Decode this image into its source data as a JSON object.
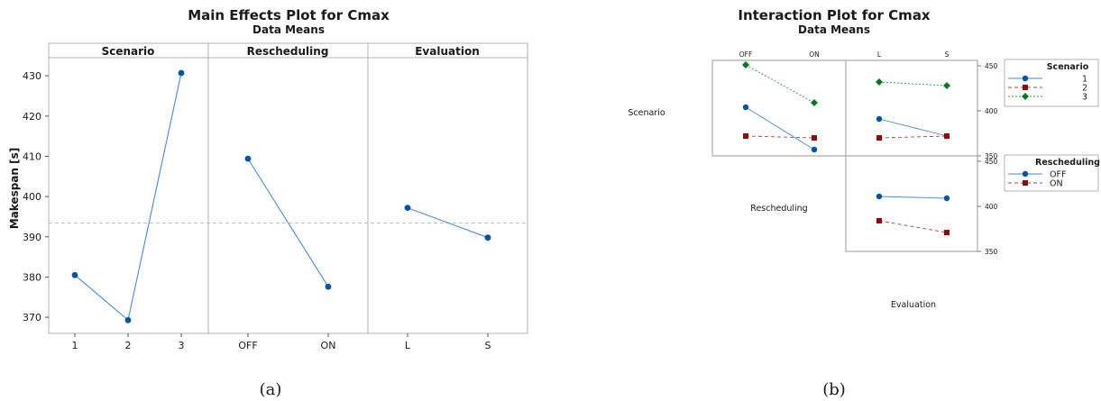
{
  "chart_data": [
    {
      "type": "line",
      "title": "Main Effects Plot for Cmax",
      "subtitle": "Data Means",
      "ylabel": "Makespan [s]",
      "ylim": [
        366,
        434.5
      ],
      "yticks": [
        370,
        380,
        390,
        400,
        410,
        420,
        430
      ],
      "reference_line": 393.4,
      "panels": [
        {
          "name": "Scenario",
          "categories": [
            "1",
            "2",
            "3"
          ],
          "values": [
            380.5,
            369.3,
            430.7
          ]
        },
        {
          "name": "Rescheduling",
          "categories": [
            "OFF",
            "ON"
          ],
          "values": [
            409.4,
            377.6
          ]
        },
        {
          "name": "Evaluation",
          "categories": [
            "L",
            "S"
          ],
          "values": [
            397.2,
            389.8
          ]
        }
      ],
      "caption": "(a)"
    },
    {
      "type": "line",
      "title": "Interaction Plot for Cmax",
      "subtitle": "Data Means",
      "row_labels": [
        "Scenario",
        "Rescheduling"
      ],
      "column_label": "Evaluation",
      "top_categories": [
        [
          "OFF",
          "ON"
        ],
        [
          "L",
          "S"
        ]
      ],
      "yticks": [
        350,
        400,
        450
      ],
      "cells": [
        {
          "row_factor": "Scenario",
          "col_factor": "Rescheduling",
          "categories": [
            "OFF",
            "ON"
          ],
          "series": [
            {
              "name": "1",
              "values": [
                404,
                357
              ]
            },
            {
              "name": "2",
              "values": [
                372,
                370
              ]
            },
            {
              "name": "3",
              "values": [
                451,
                409
              ]
            }
          ]
        },
        {
          "row_factor": "Scenario",
          "col_factor": "Evaluation",
          "categories": [
            "L",
            "S"
          ],
          "series": [
            {
              "name": "1",
              "values": [
                391,
                372
              ]
            },
            {
              "name": "2",
              "values": [
                370,
                372
              ]
            },
            {
              "name": "3",
              "values": [
                432,
                428
              ]
            }
          ]
        },
        {
          "row_factor": "Rescheduling",
          "col_factor": "Evaluation",
          "categories": [
            "L",
            "S"
          ],
          "series": [
            {
              "name": "OFF",
              "values": [
                411,
                409
              ]
            },
            {
              "name": "ON",
              "values": [
                384,
                371
              ]
            }
          ]
        }
      ],
      "legends": [
        {
          "title": "Scenario",
          "entries": [
            "1",
            "2",
            "3"
          ]
        },
        {
          "title": "Rescheduling",
          "entries": [
            "OFF",
            "ON"
          ]
        }
      ],
      "colors": {
        "blue": "#0054a6",
        "red": "#8b0d0d",
        "green": "#007a1e"
      },
      "caption": "(b)"
    }
  ]
}
